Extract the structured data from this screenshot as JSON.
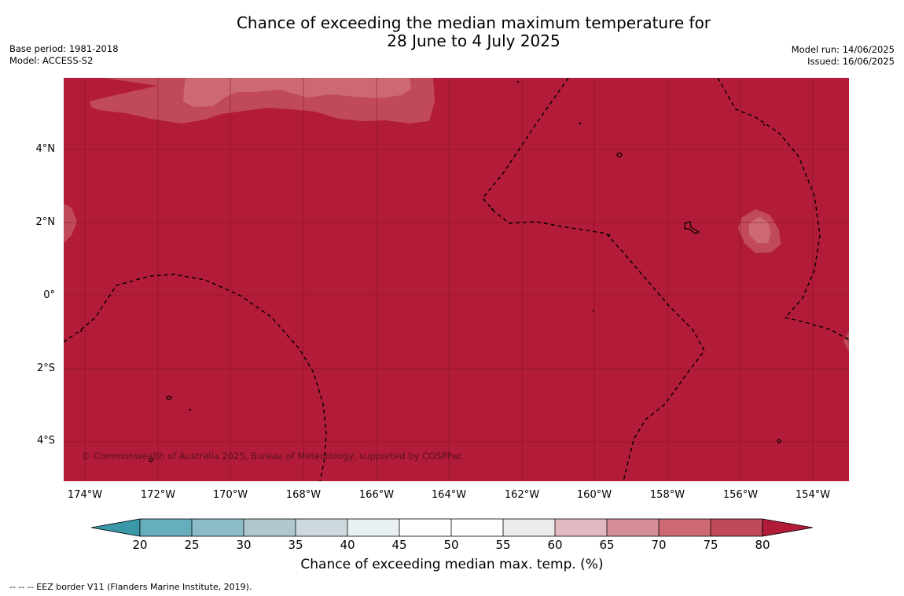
{
  "title": {
    "line1": "Chance of exceeding the median maximum temperature for",
    "line2": "28 June to 4 July 2025"
  },
  "meta_left": {
    "base_period": "Base period: 1981-2018",
    "model": "Model: ACCESS-S2"
  },
  "meta_right": {
    "model_run": "Model run: 14/06/2025",
    "issued": "Issued: 16/06/2025"
  },
  "map": {
    "lat_labels": [
      "4°N",
      "2°N",
      "0°",
      "2°S",
      "4°S"
    ],
    "lon_labels": [
      "174°W",
      "172°W",
      "170°W",
      "168°W",
      "166°W",
      "164°W",
      "162°W",
      "160°W",
      "158°W",
      "156°W",
      "154°W"
    ],
    "credit": "© Commonwealth of Australia 2025, Bureau of Meteorology, supported by COSPPac",
    "colors": {
      "above_80": "#b21c38",
      "75_80": "#c14a5a",
      "70_75": "#cc6973",
      "65_70": "#d68f98",
      "eez": "#000000"
    }
  },
  "colorbar": {
    "ticks": [
      "20",
      "25",
      "30",
      "35",
      "40",
      "45",
      "50",
      "55",
      "60",
      "65",
      "70",
      "75",
      "80"
    ],
    "colors": {
      "below_20": "#3a98a8",
      "20_25": "#67aebc",
      "25_30": "#8bbcc7",
      "30_35": "#afc9cf",
      "35_40": "#cdd9dc",
      "40_45": "#eaf1f2",
      "45_50": "#ffffff",
      "50_55": "#ffffff",
      "55_60": "#ebebeb",
      "60_65": "#e2b9c0",
      "65_70": "#d68f98",
      "70_75": "#cc6973",
      "75_80": "#c14a5a",
      "above_80": "#b21c38"
    },
    "title": "Chance of exceeding median max. temp. (%)"
  },
  "footnote": "--  --  -- EEZ border V11 (Flanders Marine Institute, 2019)."
}
